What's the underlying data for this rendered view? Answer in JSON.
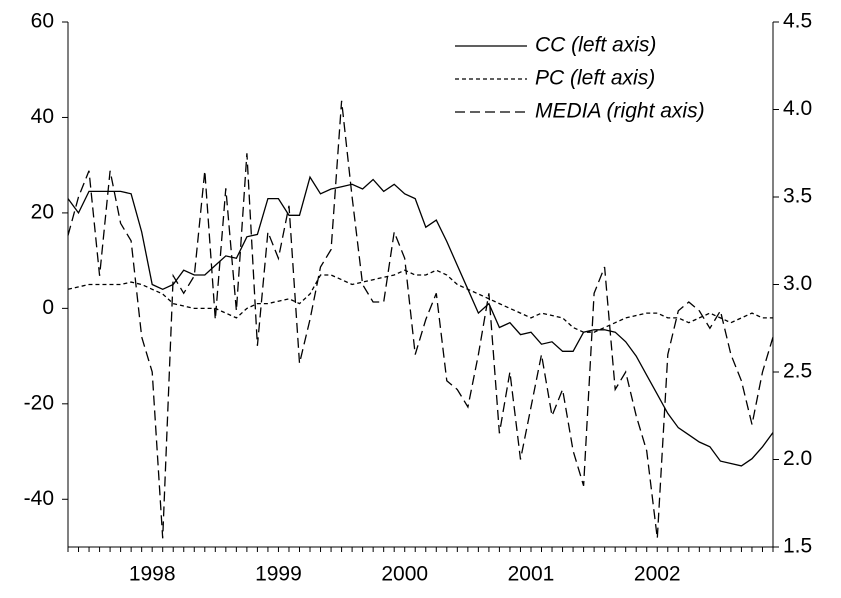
{
  "chart_data": {
    "type": "line",
    "categories": [
      null,
      null,
      null,
      null,
      null,
      null,
      null,
      null,
      "1998",
      null,
      null,
      null,
      null,
      null,
      null,
      null,
      null,
      null,
      null,
      null,
      "1999",
      null,
      null,
      null,
      null,
      null,
      null,
      null,
      null,
      null,
      null,
      null,
      "2000",
      null,
      null,
      null,
      null,
      null,
      null,
      null,
      null,
      null,
      null,
      null,
      "2001",
      null,
      null,
      null,
      null,
      null,
      null,
      null,
      null,
      null,
      null,
      null,
      "2002",
      null,
      null,
      null,
      null,
      null,
      null,
      null,
      null,
      null,
      null,
      null
    ],
    "series": [
      {
        "name": "CC (left axis)",
        "color": "#000000",
        "dash": "none",
        "axis": "y",
        "values": [
          23,
          20,
          24.5,
          24.5,
          24.5,
          24.5,
          24,
          16,
          5,
          4,
          5,
          8,
          7,
          7,
          9,
          11,
          10.5,
          15,
          15.5,
          23,
          23,
          19.5,
          19.5,
          27.5,
          24,
          25,
          25.5,
          26,
          25,
          27,
          24.5,
          26,
          24,
          23,
          17,
          18.5,
          14,
          9,
          4,
          -1,
          1,
          -4,
          -3,
          -5.5,
          -5,
          -7.5,
          -7,
          -9,
          -9,
          -5,
          -4.5,
          -4.5,
          -5,
          -7,
          -10,
          -14,
          -18,
          -22,
          -25,
          -26.5,
          -28,
          -29,
          -32,
          -32.5,
          -33,
          -31.5,
          -29,
          -26
        ]
      },
      {
        "name": "PC (left axis)",
        "color": "#000000",
        "dash": "4,3",
        "axis": "y",
        "values": [
          4,
          4.5,
          5,
          5,
          5,
          5,
          5.5,
          5,
          4,
          3,
          1,
          0.5,
          0,
          0,
          0,
          -1,
          -2,
          0,
          1,
          1,
          1.5,
          2,
          1,
          3,
          7,
          7,
          6,
          5,
          5.5,
          6,
          6.5,
          7,
          8,
          7,
          7,
          8,
          7,
          5,
          4,
          3,
          2,
          1,
          0,
          -1,
          -2,
          -1,
          -1.5,
          -2,
          -4,
          -5,
          -5,
          -4,
          -3,
          -2,
          -1.5,
          -1,
          -1,
          -2,
          -2,
          -3,
          -2,
          -1,
          -2,
          -3,
          -2,
          -1,
          -2,
          -2
        ]
      },
      {
        "name": "MEDIA (right axis)",
        "color": "#000000",
        "dash": "10,5",
        "axis": "y2",
        "values": [
          3.28,
          3.5,
          3.65,
          3.05,
          3.65,
          3.35,
          3.25,
          2.7,
          2.5,
          1.55,
          3.05,
          2.95,
          3.05,
          3.65,
          2.8,
          3.55,
          2.85,
          3.75,
          2.65,
          3.3,
          3.15,
          3.45,
          2.55,
          2.8,
          3.1,
          3.2,
          4.05,
          3.5,
          3.0,
          2.9,
          2.9,
          3.3,
          3.15,
          2.6,
          2.8,
          2.95,
          2.45,
          2.4,
          2.3,
          2.6,
          2.95,
          2.15,
          2.5,
          2.0,
          2.3,
          2.6,
          2.25,
          2.4,
          2.05,
          1.85,
          2.95,
          3.1,
          2.4,
          2.5,
          2.25,
          2.05,
          1.55,
          2.6,
          2.85,
          2.9,
          2.85,
          2.75,
          2.85,
          2.6,
          2.45,
          2.2,
          2.5,
          2.7
        ]
      }
    ],
    "ylim": [
      -50,
      60
    ],
    "yticks": [
      -40,
      -20,
      0,
      20,
      40,
      60
    ],
    "y2lim": [
      1.5,
      4.5
    ],
    "y2ticks": [
      1.5,
      {
        "value": 2,
        "label": "2.0"
      },
      2.5,
      {
        "value": 3,
        "label": "3.0"
      },
      3.5,
      {
        "value": 4,
        "label": "4.0"
      },
      4.5
    ],
    "legend": "top-right",
    "grid": false
  }
}
